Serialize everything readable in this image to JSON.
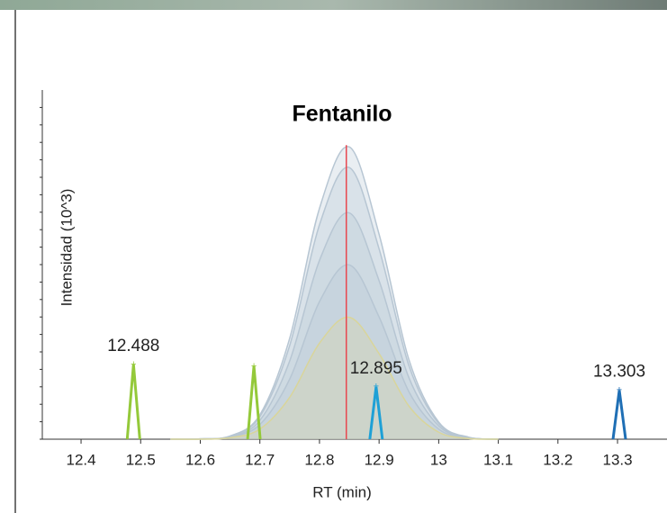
{
  "chart_data": {
    "type": "line",
    "title": "Fentanilo",
    "xlabel": "RT (min)",
    "ylabel": "Intensidad (10^3)",
    "xlim": [
      12.335,
      13.383
    ],
    "xticks": [
      12.4,
      12.5,
      12.6,
      12.7,
      12.8,
      12.9,
      13.0,
      13.1,
      13.2,
      13.3
    ],
    "ylim": [
      0,
      100
    ],
    "yticks": [
      0,
      5,
      10,
      15,
      20,
      25,
      30,
      35,
      40,
      45,
      50,
      55,
      60,
      65,
      70,
      75,
      80,
      85,
      90,
      95
    ],
    "x": [
      12.55,
      12.6,
      12.65,
      12.7,
      12.75,
      12.8,
      12.85,
      12.9,
      12.95,
      13.0,
      13.05,
      13.1
    ],
    "series": [
      {
        "color": "#b7c6d3",
        "values": [
          0,
          0.1,
          0.9,
          7,
          28.9,
          66.1,
          83.7,
          58.7,
          22.8,
          4.9,
          0.6,
          0
        ]
      },
      {
        "color": "#b7c6d3",
        "values": [
          0,
          0.1,
          0.9,
          6.5,
          26.8,
          61.4,
          77.8,
          54.5,
          21.1,
          4.5,
          0.5,
          0
        ]
      },
      {
        "color": "#b7c6d3",
        "values": [
          0,
          0.1,
          0.7,
          5.4,
          22.4,
          51.2,
          64.8,
          45.4,
          17.6,
          3.8,
          0.5,
          0
        ]
      },
      {
        "color": "#b7c6d3",
        "values": [
          0,
          0,
          0.6,
          4.2,
          17.2,
          39.4,
          49.9,
          35,
          13.6,
          2.9,
          0.4,
          0
        ]
      },
      {
        "color": "#d9d59a",
        "values": [
          0,
          0,
          0.4,
          2.9,
          12,
          27.5,
          34.9,
          24.5,
          9.5,
          2,
          0.2,
          0
        ]
      }
    ],
    "spikes": [
      {
        "rt": 12.488,
        "height": 21.4,
        "color": "#94c93a",
        "labeled": true
      },
      {
        "rt": 12.69,
        "height": 20.9,
        "color": "#94c93a",
        "labeled": false
      },
      {
        "rt": 12.895,
        "height": 15,
        "color": "#1ea0d6",
        "labeled": true
      },
      {
        "rt": 13.303,
        "height": 14,
        "color": "#1f6fb5",
        "labeled": true
      }
    ],
    "marker_rt": 12.845,
    "marker_color": "#e8474f"
  }
}
